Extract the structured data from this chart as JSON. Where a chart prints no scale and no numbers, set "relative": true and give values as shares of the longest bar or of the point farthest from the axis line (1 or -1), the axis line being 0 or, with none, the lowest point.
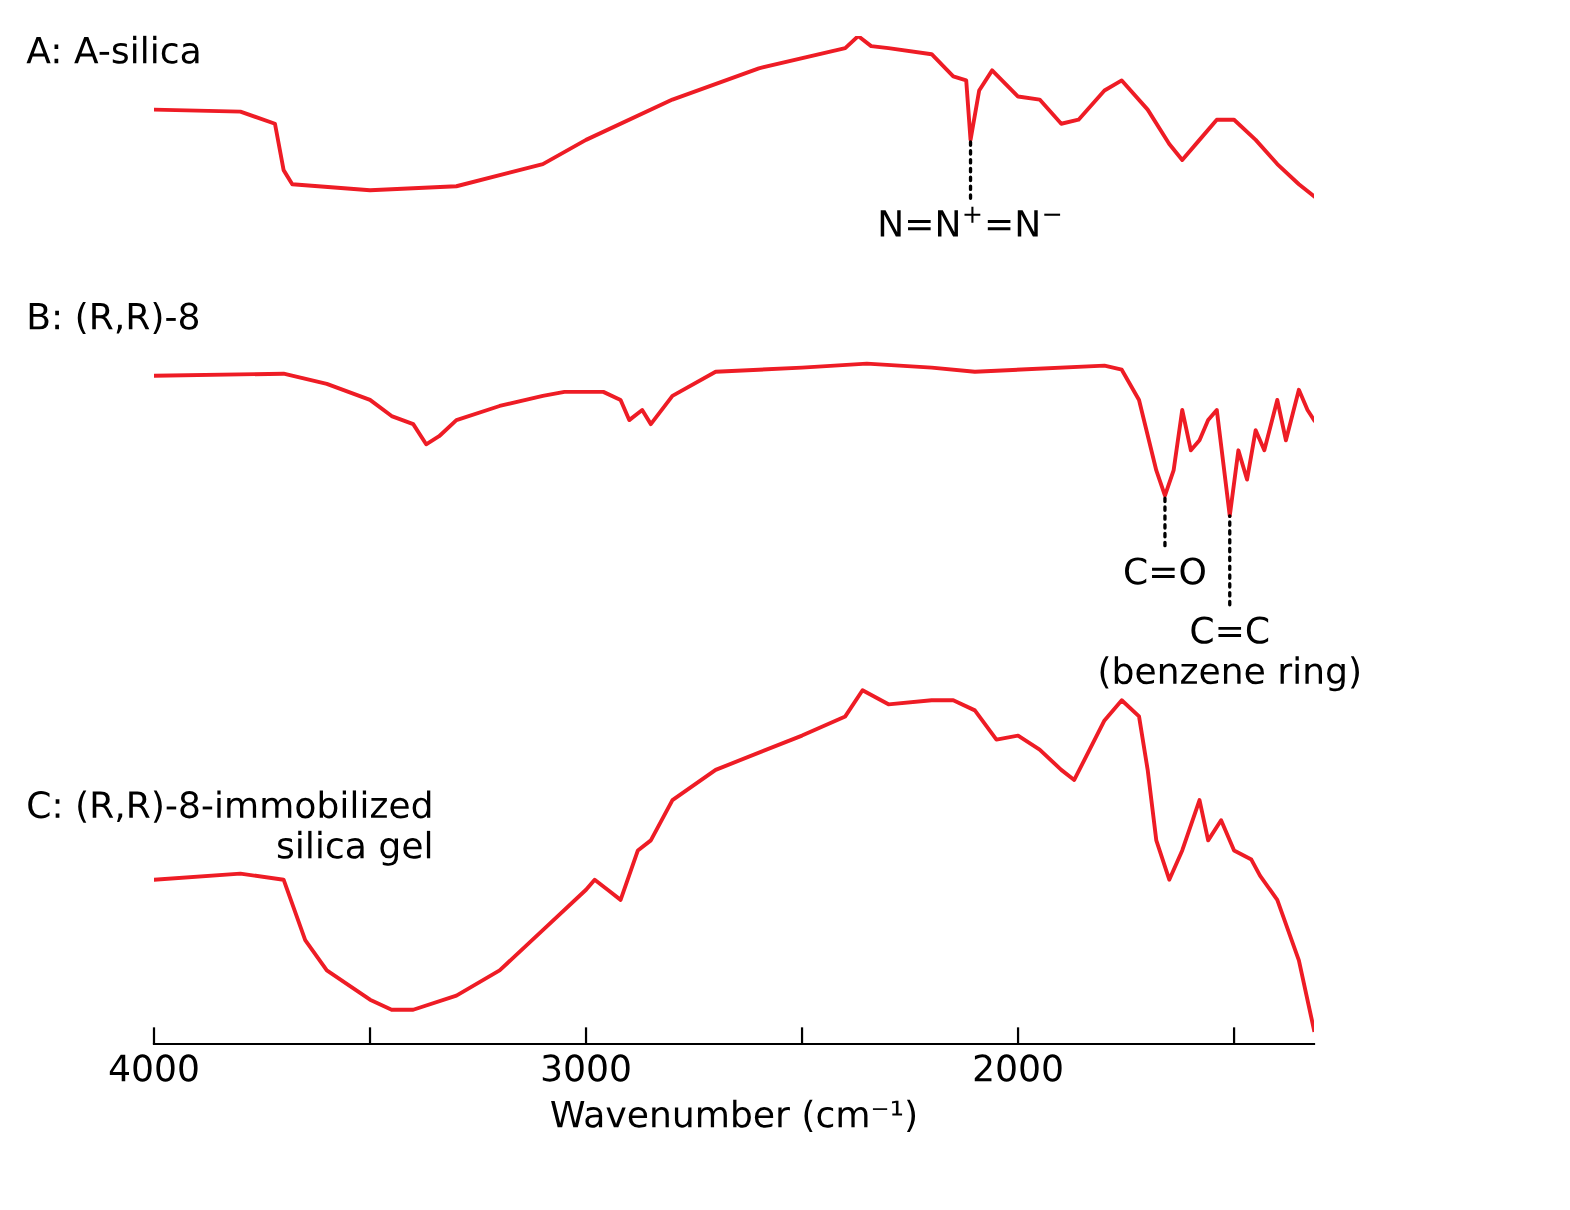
{
  "chart_data": {
    "type": "line",
    "relative": true,
    "xlabel": "Wavenumber (cm⁻¹)",
    "tick_labels": "x",
    "grid": false,
    "legend": false,
    "xlim": [
      4000,
      1315
    ],
    "xticks": [
      4000,
      {
        "value": 3500,
        "label": null
      },
      3000,
      {
        "value": 2500,
        "label": null
      },
      2000,
      {
        "value": 1500,
        "label": null
      }
    ],
    "series": [
      {
        "name": "A: A-silica",
        "color": "#ee1c25",
        "x": [
          4000,
          3800,
          3720,
          3700,
          3680,
          3500,
          3300,
          3100,
          3000,
          2800,
          2600,
          2400,
          2370,
          2340,
          2300,
          2200,
          2150,
          2120,
          2110,
          2090,
          2060,
          2000,
          1950,
          1900,
          1860,
          1800,
          1760,
          1700,
          1650,
          1620,
          1580,
          1540,
          1500,
          1450,
          1400,
          1350,
          1315
        ],
        "values": [
          0.927,
          0.925,
          0.913,
          0.867,
          0.853,
          0.847,
          0.851,
          0.873,
          0.897,
          0.937,
          0.968,
          0.988,
          1.0,
          0.99,
          0.988,
          0.982,
          0.96,
          0.956,
          0.897,
          0.946,
          0.966,
          0.94,
          0.937,
          0.913,
          0.917,
          0.946,
          0.956,
          0.927,
          0.893,
          0.877,
          0.897,
          0.917,
          0.917,
          0.897,
          0.873,
          0.853,
          0.841
        ]
      },
      {
        "name": "B: (R,R)-8",
        "color": "#ee1c25",
        "x": [
          4000,
          3700,
          3600,
          3500,
          3450,
          3400,
          3370,
          3340,
          3300,
          3200,
          3100,
          3050,
          3000,
          2960,
          2920,
          2900,
          2870,
          2850,
          2800,
          2700,
          2500,
          2350,
          2200,
          2100,
          1800,
          1760,
          1720,
          1680,
          1660,
          1640,
          1620,
          1600,
          1580,
          1560,
          1540,
          1510,
          1490,
          1470,
          1450,
          1430,
          1400,
          1380,
          1350,
          1330,
          1315
        ],
        "values": [
          0.663,
          0.665,
          0.655,
          0.639,
          0.623,
          0.615,
          0.595,
          0.603,
          0.619,
          0.633,
          0.643,
          0.647,
          0.647,
          0.647,
          0.639,
          0.619,
          0.629,
          0.615,
          0.643,
          0.667,
          0.671,
          0.675,
          0.671,
          0.667,
          0.673,
          0.669,
          0.639,
          0.569,
          0.544,
          0.569,
          0.629,
          0.589,
          0.599,
          0.619,
          0.629,
          0.524,
          0.589,
          0.56,
          0.609,
          0.589,
          0.639,
          0.599,
          0.649,
          0.629,
          0.619
        ]
      },
      {
        "name": "C: (R,R)-8-immobilized\nsilica gel",
        "color": "#ee1c25",
        "x": [
          4000,
          3800,
          3700,
          3650,
          3600,
          3500,
          3450,
          3400,
          3300,
          3200,
          3100,
          3000,
          2980,
          2950,
          2920,
          2880,
          2850,
          2800,
          2700,
          2500,
          2400,
          2360,
          2300,
          2200,
          2150,
          2100,
          2050,
          2000,
          1950,
          1900,
          1870,
          1800,
          1760,
          1720,
          1700,
          1680,
          1650,
          1620,
          1580,
          1560,
          1530,
          1500,
          1460,
          1440,
          1400,
          1350,
          1315
        ],
        "values": [
          0.163,
          0.169,
          0.163,
          0.103,
          0.073,
          0.044,
          0.034,
          0.034,
          0.048,
          0.073,
          0.113,
          0.153,
          0.163,
          0.153,
          0.143,
          0.192,
          0.202,
          0.242,
          0.272,
          0.306,
          0.325,
          0.351,
          0.337,
          0.341,
          0.341,
          0.331,
          0.302,
          0.306,
          0.292,
          0.272,
          0.262,
          0.321,
          0.341,
          0.325,
          0.272,
          0.202,
          0.163,
          0.192,
          0.242,
          0.202,
          0.222,
          0.192,
          0.183,
          0.167,
          0.143,
          0.083,
          0.014
        ]
      }
    ],
    "annotations": [
      {
        "text": "N=N$^{+}$=N$^{−}$",
        "x": 2110,
        "y": 0.897
      },
      {
        "text": "C=O",
        "x": 1660,
        "y": 0.544
      },
      {
        "text": "C=C\n(benzene ring)",
        "x": 1510,
        "y": 0.524
      }
    ]
  }
}
